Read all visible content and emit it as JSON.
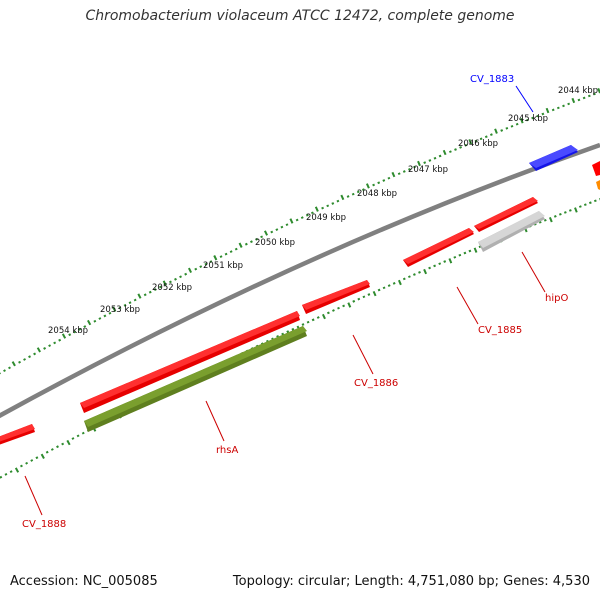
{
  "title": "Chromobacterium violaceum ATCC 12472, complete genome",
  "footer": {
    "accession": "Accession: NC_005085",
    "summary": "Topology: circular; Length: 4,751,080 bp; Genes: 4,530"
  },
  "scale_labels": [
    "2044 kbp",
    "2045 kbp",
    "2046 kbp",
    "2047 kbp",
    "2048 kbp",
    "2049 kbp",
    "2050 kbp",
    "2051 kbp",
    "2052 kbp",
    "2053 kbp",
    "2054 kbp"
  ],
  "genes": [
    {
      "label": "CV_1883",
      "color": "#0000ff"
    },
    {
      "label": "hipO",
      "color": "#cc0000"
    },
    {
      "label": "CV_1885",
      "color": "#cc0000"
    },
    {
      "label": "CV_1886",
      "color": "#cc0000"
    },
    {
      "label": "rhsA",
      "color": "#cc0000"
    },
    {
      "label": "CV_1888",
      "color": "#cc0000"
    }
  ],
  "colors": {
    "backbone": "#808080",
    "tick": "#2e8b2e",
    "gene_red": "#ff0000",
    "gene_blue": "#0000ff",
    "gene_grey": "#c0c0c0",
    "gene_olive": "#6b8e23",
    "gene_orange": "#ff8c00"
  }
}
